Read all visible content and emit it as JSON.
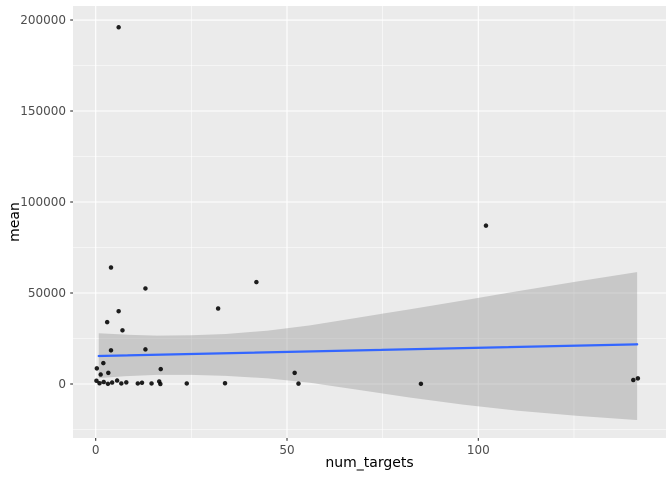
{
  "chart_data": {
    "type": "scatter",
    "title": "",
    "xlabel": "num_targets",
    "ylabel": "mean",
    "legend": "none",
    "grid": "on",
    "panel_style": "ggplot-grey",
    "xlim": [
      -5.93,
      149.05
    ],
    "ylim": [
      -29670,
      207700
    ],
    "x_ticks": [
      0,
      50,
      100
    ],
    "x_tick_labels": [
      "0",
      "50",
      "100"
    ],
    "x_minor_ticks": [
      25,
      75,
      125
    ],
    "y_ticks": [
      0,
      50000,
      100000,
      150000,
      200000
    ],
    "y_tick_labels": [
      "0",
      "50000",
      "100000",
      "150000",
      "200000"
    ],
    "y_minor_ticks": [
      -25000,
      25000,
      75000,
      125000,
      175000
    ],
    "points": [
      [
        6,
        196000
      ],
      [
        102,
        87000
      ],
      [
        4,
        64000
      ],
      [
        42,
        56000
      ],
      [
        13,
        52500
      ],
      [
        32,
        41500
      ],
      [
        6,
        40000
      ],
      [
        3,
        34000
      ],
      [
        7,
        29500
      ],
      [
        13,
        19000
      ],
      [
        4,
        18500
      ],
      [
        2,
        11500
      ],
      [
        0.3,
        8600
      ],
      [
        17,
        8200
      ],
      [
        3.3,
        6100
      ],
      [
        52,
        6100
      ],
      [
        1.3,
        5200
      ],
      [
        0.2,
        1800
      ],
      [
        1,
        400
      ],
      [
        2.1,
        1100
      ],
      [
        3.2,
        100
      ],
      [
        4.3,
        800
      ],
      [
        5.6,
        1900
      ],
      [
        6.7,
        300
      ],
      [
        8,
        900
      ],
      [
        11,
        300
      ],
      [
        12.1,
        700
      ],
      [
        14.6,
        300
      ],
      [
        16.6,
        1400
      ],
      [
        16.9,
        0
      ],
      [
        23.8,
        300
      ],
      [
        33.8,
        400
      ],
      [
        53,
        200
      ],
      [
        85,
        100
      ],
      [
        140.5,
        2200
      ],
      [
        141.7,
        3100
      ]
    ],
    "smooth": {
      "method": "lm",
      "line_start": [
        0.8,
        15400
      ],
      "line_end": [
        141.5,
        21800
      ],
      "ribbon": [
        {
          "x": 0.8,
          "top": 27900,
          "bottom": 3200
        },
        {
          "x": 8,
          "top": 27100,
          "bottom": 4300
        },
        {
          "x": 16,
          "top": 26600,
          "bottom": 5000
        },
        {
          "x": 25,
          "top": 26800,
          "bottom": 5000
        },
        {
          "x": 34,
          "top": 27500,
          "bottom": 4500
        },
        {
          "x": 45,
          "top": 29300,
          "bottom": 3100
        },
        {
          "x": 56,
          "top": 32200,
          "bottom": 700
        },
        {
          "x": 68,
          "top": 36300,
          "bottom": -3000
        },
        {
          "x": 82,
          "top": 41000,
          "bottom": -7400
        },
        {
          "x": 96,
          "top": 45900,
          "bottom": -11300
        },
        {
          "x": 110,
          "top": 50900,
          "bottom": -14600
        },
        {
          "x": 126,
          "top": 56400,
          "bottom": -17500
        },
        {
          "x": 141.5,
          "top": 61500,
          "bottom": -19800
        }
      ]
    },
    "colors": {
      "figure_bg": "#FFFFFF",
      "panel_bg": "#EBEBEB",
      "gridline": "#FFFFFF",
      "point": "#000000",
      "smooth_line": "#3366FF",
      "ribbon_fill": "#999999",
      "tick_label": "#4D4D4D",
      "axis_title": "#000000",
      "tick_mark": "#333333"
    }
  }
}
